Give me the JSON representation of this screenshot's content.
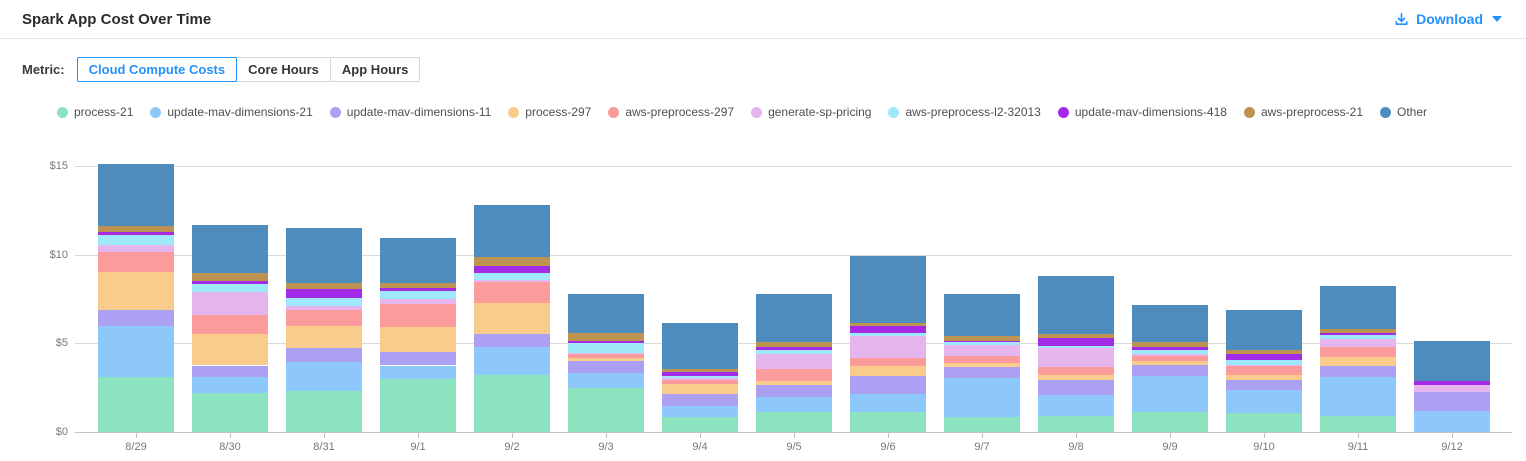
{
  "header": {
    "title": "Spark App Cost Over Time",
    "download_label": "Download"
  },
  "metric_selector": {
    "label": "Metric:",
    "options": [
      {
        "label": "Cloud Compute Costs",
        "active": true
      },
      {
        "label": "Core Hours",
        "active": false
      },
      {
        "label": "App Hours",
        "active": false
      }
    ]
  },
  "colors": {
    "accent_blue": "#2492fa",
    "grid": "#dadada",
    "axis_text": "#787878"
  },
  "chart_data": {
    "type": "bar",
    "stacked": true,
    "title": "",
    "xlabel": "",
    "ylabel": "",
    "ylim": [
      0,
      15
    ],
    "y_ticks": [
      "$0",
      "$5",
      "$10",
      "$15"
    ],
    "grid": true,
    "legend_position": "top",
    "categories": [
      "8/29",
      "8/30",
      "8/31",
      "9/1",
      "9/2",
      "9/3",
      "9/4",
      "9/5",
      "9/6",
      "9/7",
      "9/8",
      "9/9",
      "9/10",
      "9/11",
      "9/12"
    ],
    "series": [
      {
        "name": "process-21",
        "color": "#8be3c0",
        "values": [
          3.1,
          2.2,
          2.3,
          3.0,
          3.2,
          2.5,
          0.85,
          1.1,
          1.1,
          0.85,
          0.9,
          1.1,
          1.05,
          0.9,
          0
        ]
      },
      {
        "name": "update-mav-dimensions-21",
        "color": "#8ec8fb",
        "values": [
          2.85,
          0.9,
          1.65,
          0.75,
          1.6,
          0.8,
          0.6,
          0.85,
          1.05,
          2.2,
          1.2,
          2.05,
          1.3,
          2.2,
          1.2
        ]
      },
      {
        "name": "update-mav-dimensions-11",
        "color": "#aba0f2",
        "values": [
          0.95,
          0.65,
          0.8,
          0.75,
          0.7,
          0.7,
          0.7,
          0.7,
          1.0,
          0.6,
          0.85,
          0.65,
          0.6,
          0.6,
          1.05
        ]
      },
      {
        "name": "process-297",
        "color": "#f9cc8e",
        "values": [
          2.1,
          1.75,
          1.25,
          1.4,
          1.8,
          0.15,
          0.55,
          0.25,
          0.55,
          0.25,
          0.25,
          0.2,
          0.25,
          0.55,
          0
        ]
      },
      {
        "name": "aws-preprocess-297",
        "color": "#fb9b9b",
        "values": [
          1.15,
          1.1,
          0.9,
          1.3,
          1.15,
          0.25,
          0.25,
          0.65,
          0.45,
          0.4,
          0.45,
          0.3,
          0.5,
          0.55,
          0
        ]
      },
      {
        "name": "generate-sp-pricing",
        "color": "#e5b5ee",
        "values": [
          0.4,
          1.3,
          0.2,
          0.3,
          0.1,
          0.05,
          0.1,
          0.85,
          1.25,
          0.6,
          1.1,
          0.1,
          0.1,
          0.45,
          0.4
        ]
      },
      {
        "name": "aws-preprocess-l2-32013",
        "color": "#9fe8fa",
        "values": [
          0.55,
          0.45,
          0.45,
          0.45,
          0.4,
          0.55,
          0.1,
          0.25,
          0.2,
          0.15,
          0.1,
          0.25,
          0.25,
          0.2,
          0
        ]
      },
      {
        "name": "update-mav-dimensions-418",
        "color": "#a32be8",
        "values": [
          0.2,
          0.15,
          0.5,
          0.15,
          0.4,
          0.15,
          0.25,
          0.15,
          0.35,
          0.1,
          0.45,
          0.15,
          0.35,
          0.15,
          0.22
        ]
      },
      {
        "name": "aws-preprocess-21",
        "color": "#bc9350",
        "values": [
          0.3,
          0.45,
          0.35,
          0.3,
          0.5,
          0.45,
          0.15,
          0.25,
          0.2,
          0.25,
          0.2,
          0.25,
          0.2,
          0.2,
          0
        ]
      },
      {
        "name": "Other",
        "color": "#4e8cbd",
        "values": [
          3.5,
          2.7,
          3.1,
          2.55,
          2.95,
          2.2,
          2.6,
          2.75,
          3.8,
          2.4,
          3.3,
          2.1,
          2.3,
          2.45,
          2.25
        ]
      }
    ]
  }
}
